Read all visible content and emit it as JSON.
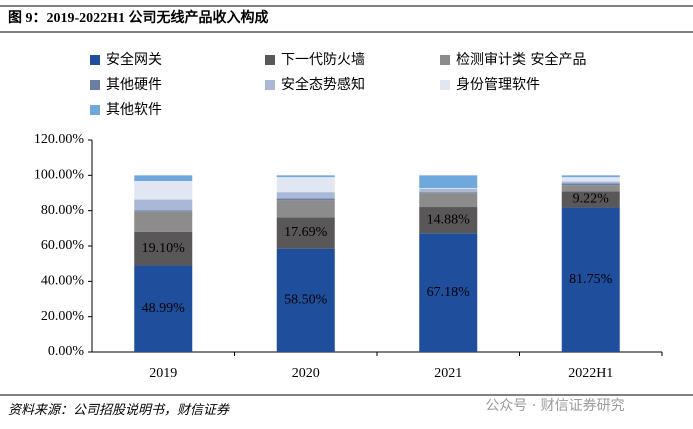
{
  "chart_data": {
    "type": "stacked_bar",
    "title": "图 9：2019-2022H1 公司无线产品收入构成",
    "source": "资料来源：公司招股说明书，财信证券",
    "categories": [
      "2019",
      "2020",
      "2021",
      "2022H1"
    ],
    "series": [
      {
        "name": "安全网关",
        "color": "#1f4e9c",
        "values": [
          48.99,
          58.5,
          67.18,
          81.75
        ],
        "value_labels": [
          "48.99%",
          "58.50%",
          "67.18%",
          "81.75%"
        ],
        "label_color": "#ffffff"
      },
      {
        "name": "下一代防火墙",
        "color": "#595757",
        "values": [
          19.1,
          17.69,
          14.88,
          9.22
        ],
        "value_labels": [
          "19.10%",
          "17.69%",
          "14.88%",
          "9.22%"
        ],
        "label_color": "#ffffff"
      },
      {
        "name": "检测审计类 安全产品",
        "color": "#8c8c8c",
        "values": [
          11.5,
          9.8,
          7.9,
          3.5
        ]
      },
      {
        "name": "其他硬件",
        "color": "#6b7fa6",
        "values": [
          0.5,
          1.0,
          0.5,
          1.0
        ]
      },
      {
        "name": "安全态势感知",
        "color": "#a9b8d6",
        "values": [
          6.2,
          3.5,
          1.8,
          1.0
        ]
      },
      {
        "name": "身份管理软件",
        "color": "#e1e7f2",
        "values": [
          10.5,
          8.5,
          0.5,
          2.5
        ]
      },
      {
        "name": "其他软件",
        "color": "#6fa8dc",
        "values": [
          3.21,
          1.01,
          7.24,
          1.03
        ]
      }
    ],
    "ylim": [
      0,
      120
    ],
    "yticks": [
      {
        "value": 0,
        "label": "0.00%"
      },
      {
        "value": 20,
        "label": "20.00%"
      },
      {
        "value": 40,
        "label": "40.00%"
      },
      {
        "value": 60,
        "label": "60.00%"
      },
      {
        "value": 80,
        "label": "80.00%"
      },
      {
        "value": 100,
        "label": "100.00%"
      },
      {
        "value": 120,
        "label": "120.00%"
      }
    ],
    "grid": false
  },
  "watermark": "公众号 · 财信证券研究"
}
